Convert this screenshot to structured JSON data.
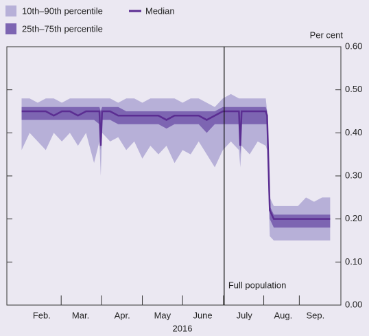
{
  "chart_data": {
    "type": "fan",
    "x": [
      32,
      38,
      44,
      50,
      56,
      62,
      68,
      74,
      80,
      86,
      90,
      91,
      92,
      98,
      104,
      110,
      116,
      122,
      128,
      134,
      140,
      146,
      152,
      158,
      164,
      170,
      176,
      182,
      188,
      194,
      195,
      196,
      202,
      208,
      214,
      215,
      217,
      220,
      226,
      232,
      238,
      244,
      250,
      256,
      262
    ],
    "bands": [
      {
        "name": "10th–90th percentile",
        "color": "#b7b0d8",
        "lower": [
          0.36,
          0.4,
          0.38,
          0.36,
          0.4,
          0.38,
          0.4,
          0.37,
          0.4,
          0.33,
          0.38,
          0.3,
          0.4,
          0.38,
          0.39,
          0.36,
          0.38,
          0.34,
          0.37,
          0.35,
          0.37,
          0.33,
          0.36,
          0.35,
          0.38,
          0.35,
          0.32,
          0.36,
          0.38,
          0.36,
          0.32,
          0.37,
          0.35,
          0.38,
          0.37,
          0.36,
          0.16,
          0.15,
          0.15,
          0.15,
          0.15,
          0.15,
          0.15,
          0.15,
          0.15
        ],
        "upper": [
          0.48,
          0.48,
          0.47,
          0.48,
          0.48,
          0.47,
          0.48,
          0.48,
          0.48,
          0.48,
          0.48,
          0.48,
          0.48,
          0.48,
          0.47,
          0.48,
          0.48,
          0.47,
          0.48,
          0.48,
          0.48,
          0.48,
          0.47,
          0.48,
          0.48,
          0.47,
          0.46,
          0.48,
          0.49,
          0.48,
          0.48,
          0.48,
          0.48,
          0.48,
          0.48,
          0.45,
          0.25,
          0.23,
          0.23,
          0.23,
          0.23,
          0.25,
          0.24,
          0.25,
          0.25
        ]
      },
      {
        "name": "25th–75th percentile",
        "color": "#7d65b2",
        "lower": [
          0.43,
          0.43,
          0.43,
          0.43,
          0.43,
          0.43,
          0.43,
          0.43,
          0.43,
          0.43,
          0.42,
          0.36,
          0.43,
          0.43,
          0.42,
          0.42,
          0.42,
          0.42,
          0.42,
          0.42,
          0.41,
          0.42,
          0.42,
          0.42,
          0.42,
          0.4,
          0.42,
          0.42,
          0.42,
          0.42,
          0.35,
          0.42,
          0.42,
          0.42,
          0.42,
          0.42,
          0.2,
          0.18,
          0.18,
          0.18,
          0.18,
          0.18,
          0.18,
          0.18,
          0.18
        ],
        "upper": [
          0.46,
          0.46,
          0.46,
          0.46,
          0.46,
          0.46,
          0.46,
          0.46,
          0.46,
          0.46,
          0.46,
          0.45,
          0.46,
          0.46,
          0.46,
          0.45,
          0.45,
          0.45,
          0.45,
          0.45,
          0.45,
          0.45,
          0.45,
          0.45,
          0.45,
          0.45,
          0.45,
          0.46,
          0.46,
          0.46,
          0.46,
          0.46,
          0.46,
          0.46,
          0.46,
          0.45,
          0.23,
          0.21,
          0.21,
          0.21,
          0.21,
          0.21,
          0.21,
          0.21,
          0.21
        ]
      }
    ],
    "series": [
      {
        "name": "Median",
        "color": "#5b2d92",
        "values": [
          0.45,
          0.45,
          0.45,
          0.45,
          0.44,
          0.45,
          0.45,
          0.44,
          0.45,
          0.45,
          0.45,
          0.37,
          0.45,
          0.45,
          0.44,
          0.44,
          0.44,
          0.44,
          0.44,
          0.44,
          0.43,
          0.44,
          0.44,
          0.44,
          0.44,
          0.43,
          0.44,
          0.45,
          0.45,
          0.45,
          0.37,
          0.45,
          0.45,
          0.45,
          0.45,
          0.44,
          0.22,
          0.2,
          0.2,
          0.2,
          0.2,
          0.2,
          0.2,
          0.2,
          0.2
        ]
      }
    ],
    "xlim": [
      21,
      270
    ],
    "xticks": [
      {
        "value": 47,
        "label": "Feb."
      },
      {
        "value": 76,
        "label": "Mar."
      },
      {
        "value": 107,
        "label": "Apr."
      },
      {
        "value": 137,
        "label": "May"
      },
      {
        "value": 167,
        "label": "June"
      },
      {
        "value": 198,
        "label": "July"
      },
      {
        "value": 227,
        "label": "Aug."
      },
      {
        "value": 251,
        "label": "Sep."
      }
    ],
    "x_label": "2016",
    "y_label": "Per cent",
    "ylim": [
      0,
      0.6
    ],
    "yticks": [
      {
        "value": 0,
        "label": "0.00"
      },
      {
        "value": 0.1,
        "label": "0.10"
      },
      {
        "value": 0.2,
        "label": "0.20"
      },
      {
        "value": 0.3,
        "label": "0.30"
      },
      {
        "value": 0.4,
        "label": "0.40"
      },
      {
        "value": 0.5,
        "label": "0.50"
      },
      {
        "value": 0.6,
        "label": "0.60"
      }
    ],
    "annotation": {
      "text": "Full population",
      "x": 183
    },
    "legend": "top-left"
  }
}
